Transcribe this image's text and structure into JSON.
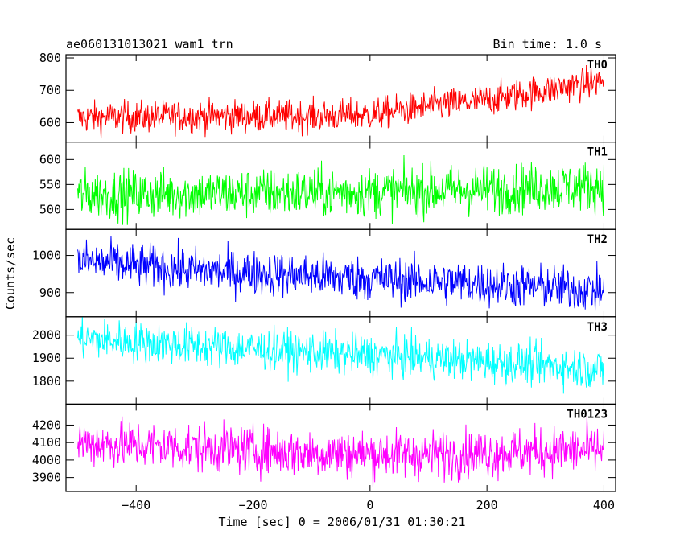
{
  "header": {
    "left": "ae060131013021_wam1_trn",
    "right": "Bin time: 1.0 s"
  },
  "ylabel": "Counts/sec",
  "xlabel": "Time [sec] 0 = 2006/01/31 01:30:21",
  "chart_data": {
    "type": "line",
    "x_range": [
      -500,
      400
    ],
    "xlim": [
      -520,
      420
    ],
    "x_ticks": [
      -400,
      -200,
      0,
      200,
      400
    ],
    "x_tick_labels": [
      "−400",
      "−200",
      "0",
      "200",
      "400"
    ],
    "panels": [
      {
        "name": "TH0",
        "color": "#ff0000",
        "ylim": [
          540,
          810
        ],
        "y_ticks": [
          600,
          700,
          800
        ],
        "y_tick_labels": [
          "600",
          "700",
          "800"
        ],
        "trend": {
          "x": [
            -500,
            -300,
            -100,
            0,
            100,
            200,
            300,
            400
          ],
          "y": [
            615,
            620,
            620,
            625,
            650,
            670,
            700,
            730
          ]
        },
        "noise": 25
      },
      {
        "name": "TH1",
        "color": "#00ff00",
        "ylim": [
          460,
          635
        ],
        "y_ticks": [
          500,
          550,
          600
        ],
        "y_tick_labels": [
          "500",
          "550",
          "600"
        ],
        "trend": {
          "x": [
            -500,
            -200,
            0,
            200,
            400
          ],
          "y": [
            530,
            532,
            535,
            540,
            548
          ]
        },
        "noise": 25
      },
      {
        "name": "TH2",
        "color": "#0000ff",
        "ylim": [
          835,
          1070
        ],
        "y_ticks": [
          900,
          1000
        ],
        "y_tick_labels": [
          "900",
          "1000"
        ],
        "trend": {
          "x": [
            -500,
            -300,
            -100,
            100,
            300,
            400
          ],
          "y": [
            985,
            960,
            945,
            930,
            915,
            905
          ]
        },
        "noise": 30
      },
      {
        "name": "TH3",
        "color": "#00ffff",
        "ylim": [
          1700,
          2080
        ],
        "y_ticks": [
          1800,
          1900,
          2000
        ],
        "y_tick_labels": [
          "1800",
          "1900",
          "2000"
        ],
        "trend": {
          "x": [
            -500,
            -300,
            -100,
            100,
            300,
            400
          ],
          "y": [
            1985,
            1955,
            1925,
            1900,
            1870,
            1850
          ]
        },
        "noise": 45
      },
      {
        "name": "TH0123",
        "color": "#ff00ff",
        "ylim": [
          3820,
          4320
        ],
        "y_ticks": [
          3900,
          4000,
          4100,
          4200
        ],
        "y_tick_labels": [
          "3900",
          "4000",
          "4100",
          "4200"
        ],
        "trend": {
          "x": [
            -500,
            -300,
            -100,
            100,
            300,
            400
          ],
          "y": [
            4100,
            4070,
            4040,
            4030,
            4050,
            4060
          ]
        },
        "noise": 70
      }
    ]
  }
}
